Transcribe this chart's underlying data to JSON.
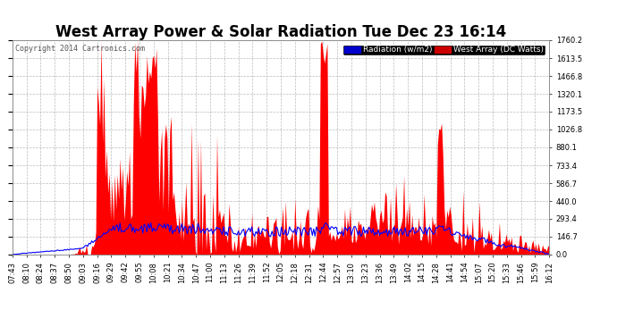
{
  "title": "West Array Power & Solar Radiation Tue Dec 23 16:14",
  "copyright": "Copyright 2014 Cartronics.com",
  "legend_labels": [
    "Radiation (w/m2)",
    "West Array (DC Watts)"
  ],
  "legend_colors_bg": [
    "#0000cc",
    "#cc0000"
  ],
  "legend_text_colors": [
    "#ffffff",
    "#ffffff"
  ],
  "bg_color": "#ffffff",
  "plot_bg_color": "#ffffff",
  "grid_color": "#aaaaaa",
  "title_color": "#000000",
  "tick_color": "#000000",
  "copyright_color": "#555555",
  "ymin": 0.0,
  "ymax": 1760.2,
  "yticks": [
    0.0,
    146.7,
    293.4,
    440.0,
    586.7,
    733.4,
    880.1,
    1026.8,
    1173.5,
    1320.1,
    1466.8,
    1613.5,
    1760.2
  ],
  "xtick_labels": [
    "07:43",
    "08:10",
    "08:24",
    "08:37",
    "08:50",
    "09:03",
    "09:16",
    "09:29",
    "09:42",
    "09:55",
    "10:08",
    "10:21",
    "10:34",
    "10:47",
    "11:00",
    "11:13",
    "11:26",
    "11:39",
    "11:52",
    "12:05",
    "12:18",
    "12:31",
    "12:44",
    "12:57",
    "13:10",
    "13:23",
    "13:36",
    "13:49",
    "14:02",
    "14:15",
    "14:28",
    "14:41",
    "14:54",
    "15:07",
    "15:20",
    "15:33",
    "15:46",
    "15:59",
    "16:12"
  ],
  "radiation_color": "#0000ff",
  "power_color": "#ff0000",
  "title_fontsize": 12,
  "copyright_fontsize": 6,
  "tick_fontsize": 6,
  "legend_fontsize": 6.5
}
